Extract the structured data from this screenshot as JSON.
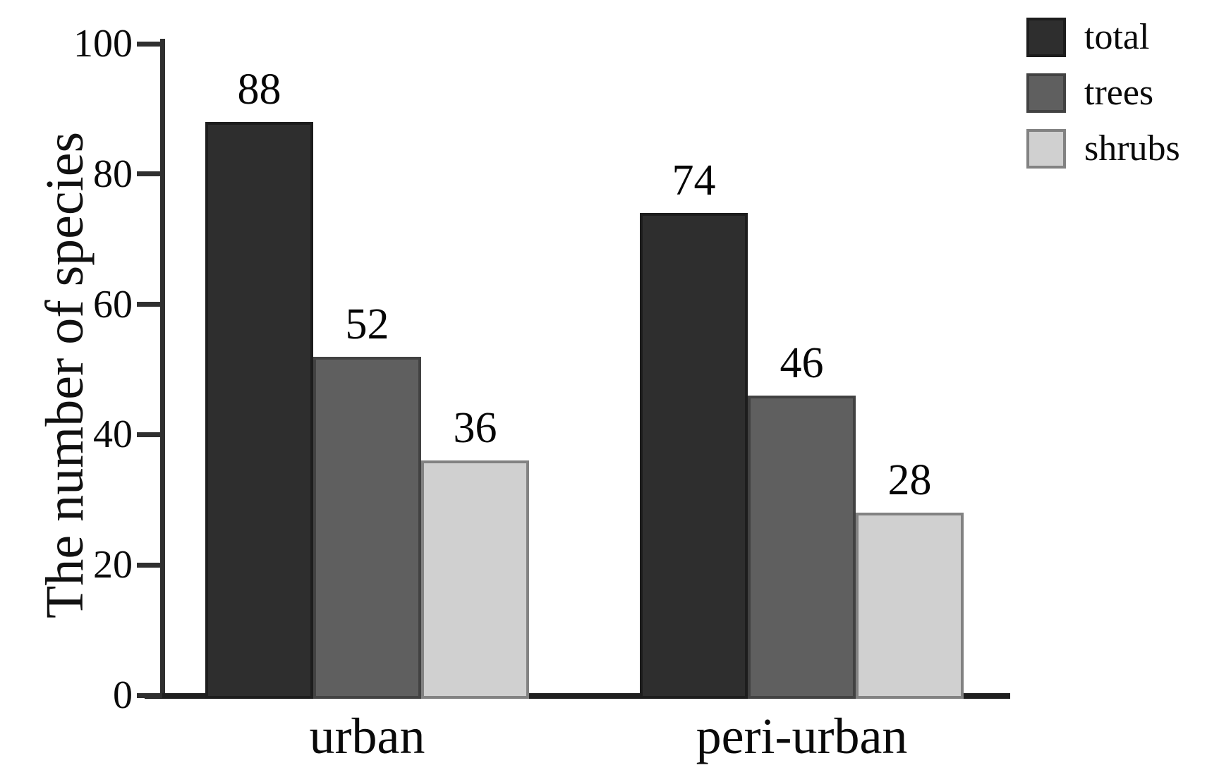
{
  "chart_data": {
    "type": "bar",
    "title": "",
    "xlabel": "",
    "ylabel": "The number of species",
    "categories": [
      "urban",
      "peri-urban"
    ],
    "series": [
      {
        "name": "total",
        "values": [
          88,
          74
        ],
        "fill": "#2e2e2e",
        "border": "#1d1d1d"
      },
      {
        "name": "trees",
        "values": [
          52,
          46
        ],
        "fill": "#5f5f5f",
        "border": "#424242"
      },
      {
        "name": "shrubs",
        "values": [
          36,
          28
        ],
        "fill": "#d0d0d0",
        "border": "#828282"
      }
    ],
    "ylim": [
      0,
      100
    ],
    "yticks": [
      0,
      20,
      40,
      60,
      80,
      100
    ],
    "grid": false,
    "bar_value_labels": true,
    "legend_position": "top-right"
  }
}
